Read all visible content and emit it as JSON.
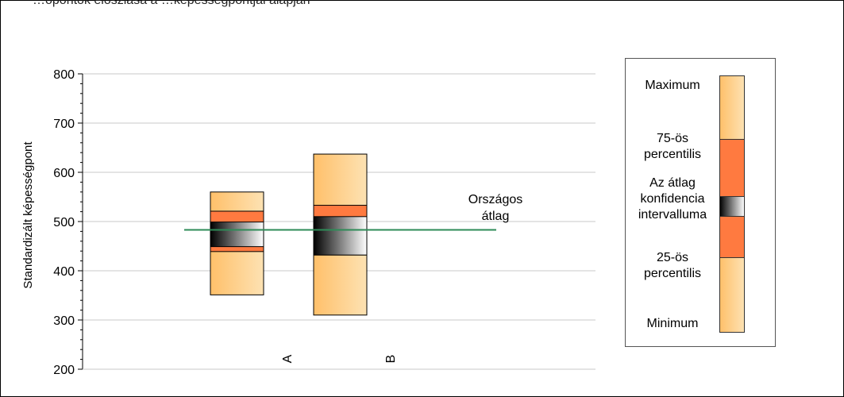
{
  "header": {
    "partial_caption": "…ópontok eloszlása a …képességpontjai alapján"
  },
  "chart_data": {
    "type": "boxplot",
    "ylabel": "Standardizált képességpont",
    "ylim": [
      200,
      800
    ],
    "yticks": [
      200,
      300,
      400,
      500,
      600,
      700,
      800
    ],
    "grid": true,
    "categories": [
      "A",
      "B"
    ],
    "boxes": [
      {
        "category": "A",
        "min": 351,
        "p25": 439,
        "ci_low": 449,
        "ci_high": 499,
        "p75": 521,
        "max": 560
      },
      {
        "category": "B",
        "min": 310,
        "p25": 432,
        "ci_low": 432,
        "ci_high": 510,
        "p75": 533,
        "max": 637
      }
    ],
    "reference_line": {
      "label_lines": [
        "Országos",
        "átlag"
      ],
      "value": 483,
      "color": "#2e8b57"
    },
    "legend": {
      "placement": "right",
      "items": [
        {
          "key": "max",
          "lines": [
            "Maximum"
          ]
        },
        {
          "key": "p75",
          "lines": [
            "75-ös",
            "percentilis"
          ]
        },
        {
          "key": "ci",
          "lines": [
            "Az átlag",
            "konfidencia",
            "intervalluma"
          ]
        },
        {
          "key": "p25",
          "lines": [
            "25-ös",
            "percentilis"
          ]
        },
        {
          "key": "min",
          "lines": [
            "Minimum"
          ]
        }
      ]
    },
    "colors": {
      "range": "#ffc06a",
      "range_light": "#fde2b3",
      "iqr": "#ff7a40",
      "ci_dark": "#000000",
      "ci_light": "#ffffff",
      "axis": "#000000",
      "grid": "#c8c8c8"
    }
  }
}
